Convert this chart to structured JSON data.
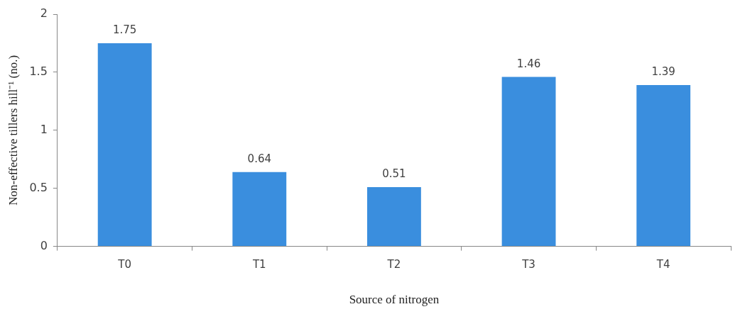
{
  "chart_data": {
    "type": "bar",
    "xlabel": "Source of nitrogen",
    "ylabel": "Non-effective tillers hill⁻¹ (no.)",
    "categories": [
      "T0",
      "T1",
      "T2",
      "T3",
      "T4"
    ],
    "values": [
      1.75,
      0.64,
      0.51,
      1.46,
      1.39
    ],
    "color": "#3a8ede",
    "ylim": [
      0,
      2
    ],
    "yticks": [
      0,
      0.5,
      1,
      1.5,
      2
    ],
    "data_labels": true
  }
}
